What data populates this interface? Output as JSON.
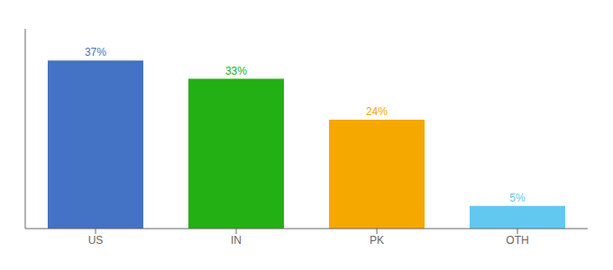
{
  "chart_data": {
    "type": "bar",
    "categories": [
      "US",
      "IN",
      "PK",
      "OTH"
    ],
    "values": [
      37,
      33,
      24,
      5
    ],
    "value_labels": [
      "37%",
      "33%",
      "24%",
      "5%"
    ],
    "data_labels": true,
    "colors": [
      "#4472c4",
      "#22b014",
      "#f5a800",
      "#63c8f0"
    ],
    "ylim": [
      0,
      44
    ],
    "tick_labels": "x"
  }
}
